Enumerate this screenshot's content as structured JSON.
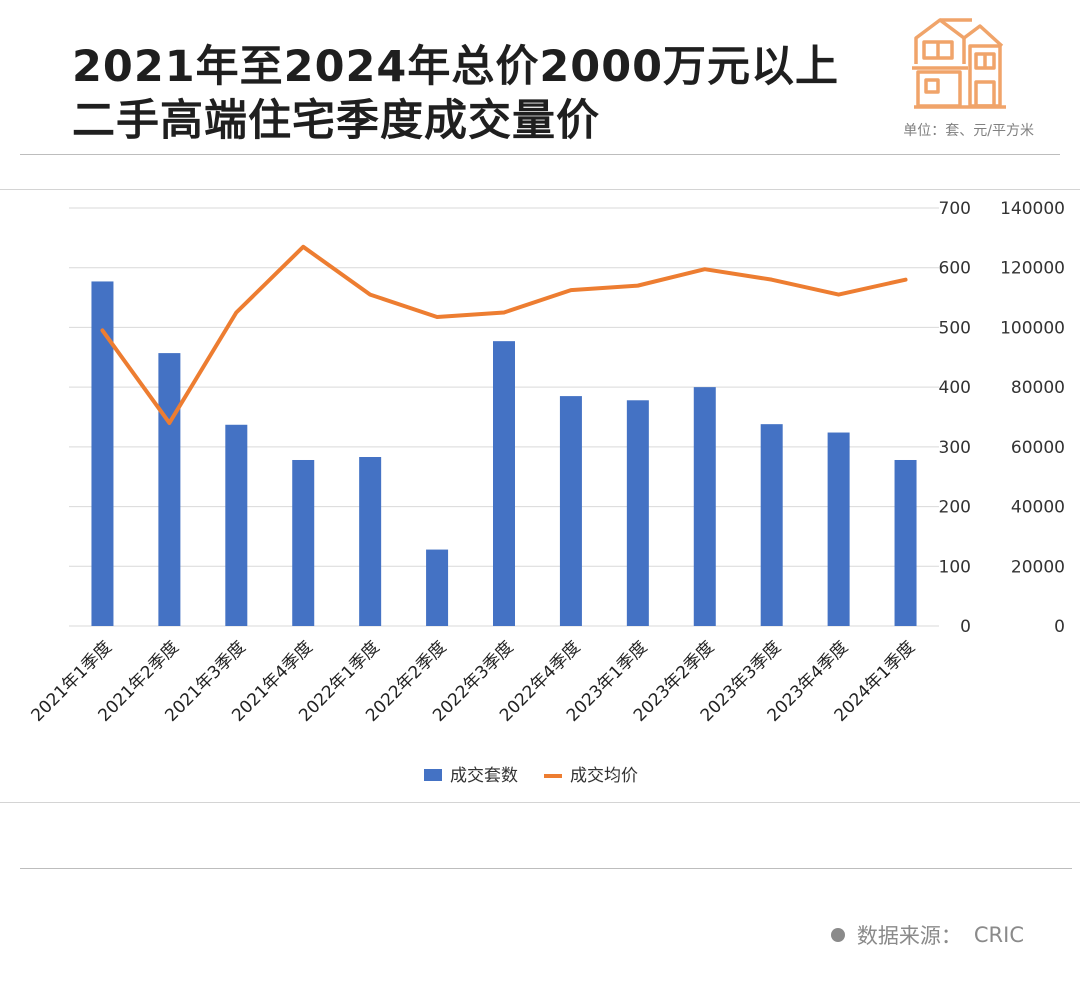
{
  "header": {
    "title_line1": "2021年至2024年总价2000万元以上",
    "title_line2": "二手高端住宅季度成交量价",
    "unit": "单位：套、元/平方米"
  },
  "footer": {
    "source_label": "数据来源：",
    "source_value": "CRIC"
  },
  "colors": {
    "bar": "#4472c4",
    "line": "#ed7d31",
    "logo": "#f0a46a",
    "grid": "#d9d9d9"
  },
  "chart_data": {
    "type": "bar",
    "categories": [
      "2021年1季度",
      "2021年2季度",
      "2021年3季度",
      "2021年4季度",
      "2022年1季度",
      "2022年2季度",
      "2022年3季度",
      "2022年4季度",
      "2023年1季度",
      "2023年2季度",
      "2023年3季度",
      "2023年4季度",
      "2024年1季度"
    ],
    "series": [
      {
        "name": "成交套数",
        "type": "bar",
        "axis": "left",
        "values": [
          577,
          457,
          337,
          278,
          283,
          128,
          477,
          385,
          378,
          400,
          338,
          324,
          278
        ]
      },
      {
        "name": "成交均价",
        "type": "line",
        "axis": "right",
        "values": [
          99000,
          68000,
          105000,
          127000,
          111000,
          103500,
          105000,
          112500,
          114000,
          119500,
          116000,
          111000,
          116000
        ]
      }
    ],
    "ylim_left": [
      0,
      700
    ],
    "yticks_left": [
      0,
      100,
      200,
      300,
      400,
      500,
      600,
      700
    ],
    "ylim_right": [
      0,
      140000
    ],
    "yticks_right": [
      0,
      20000,
      40000,
      60000,
      80000,
      100000,
      120000,
      140000
    ],
    "grid": true,
    "legend": "bottom"
  }
}
